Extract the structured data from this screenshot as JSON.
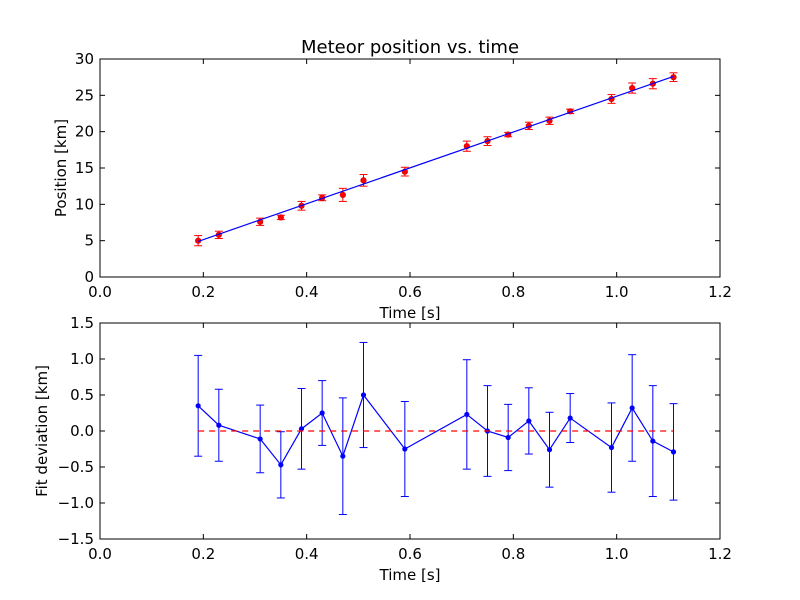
{
  "chart_data": [
    {
      "type": "scatter",
      "title": "Meteor position vs. time",
      "xlabel": "Time [s]",
      "ylabel": "Position [km]",
      "xlim": [
        0.0,
        1.2
      ],
      "ylim": [
        0,
        30
      ],
      "xticks": [
        "0.0",
        "0.2",
        "0.4",
        "0.6",
        "0.8",
        "1.0",
        "1.2"
      ],
      "yticks": [
        "0",
        "5",
        "10",
        "15",
        "20",
        "25",
        "30"
      ],
      "grid": false,
      "series": [
        {
          "kind": "errorbar-points",
          "color": "#ff0000",
          "x": [
            0.19,
            0.23,
            0.31,
            0.35,
            0.39,
            0.43,
            0.47,
            0.51,
            0.59,
            0.71,
            0.75,
            0.79,
            0.83,
            0.87,
            0.91,
            0.99,
            1.03,
            1.07,
            1.11
          ],
          "y": [
            5.0,
            5.8,
            7.6,
            8.2,
            9.8,
            10.9,
            11.3,
            13.3,
            14.5,
            18.0,
            18.7,
            19.6,
            20.8,
            21.5,
            22.8,
            24.5,
            26.0,
            26.6,
            27.5
          ],
          "yerr": [
            0.7,
            0.5,
            0.5,
            0.3,
            0.6,
            0.4,
            0.9,
            0.8,
            0.6,
            0.7,
            0.6,
            0.3,
            0.5,
            0.5,
            0.3,
            0.6,
            0.7,
            0.7,
            0.6
          ]
        },
        {
          "kind": "fit-line",
          "color": "#0000ff",
          "x": [
            0.19,
            1.11
          ],
          "y": [
            4.9,
            27.6
          ]
        }
      ]
    },
    {
      "type": "line",
      "title": "",
      "xlabel": "Time [s]",
      "ylabel": "Fit deviation [km]",
      "xlim": [
        0.0,
        1.2
      ],
      "ylim": [
        -1.5,
        1.5
      ],
      "xticks": [
        "0.0",
        "0.2",
        "0.4",
        "0.6",
        "0.8",
        "1.0",
        "1.2"
      ],
      "yticks": [
        "−1.5",
        "−1.0",
        "−0.5",
        "0.0",
        "0.5",
        "1.0",
        "1.5"
      ],
      "grid": false,
      "series": [
        {
          "kind": "errorbar-line",
          "color": "#0000ff",
          "x": [
            0.19,
            0.23,
            0.31,
            0.35,
            0.39,
            0.43,
            0.47,
            0.51,
            0.59,
            0.71,
            0.75,
            0.79,
            0.83,
            0.87,
            0.91,
            0.99,
            1.03,
            1.07,
            1.11
          ],
          "y": [
            0.35,
            0.08,
            -0.11,
            -0.47,
            0.03,
            0.25,
            -0.35,
            0.5,
            -0.25,
            0.23,
            0.0,
            -0.09,
            0.14,
            -0.26,
            0.18,
            -0.23,
            0.32,
            -0.14,
            -0.29
          ],
          "yerr": [
            0.7,
            0.5,
            0.47,
            0.46,
            0.56,
            0.45,
            0.81,
            0.73,
            0.66,
            0.76,
            0.63,
            0.46,
            0.46,
            0.52,
            0.34,
            0.62,
            0.74,
            0.77,
            0.67
          ]
        },
        {
          "kind": "zero-line",
          "color": "#ff0000",
          "x": [
            0.19,
            1.11
          ],
          "y": [
            0,
            0
          ]
        }
      ]
    }
  ]
}
